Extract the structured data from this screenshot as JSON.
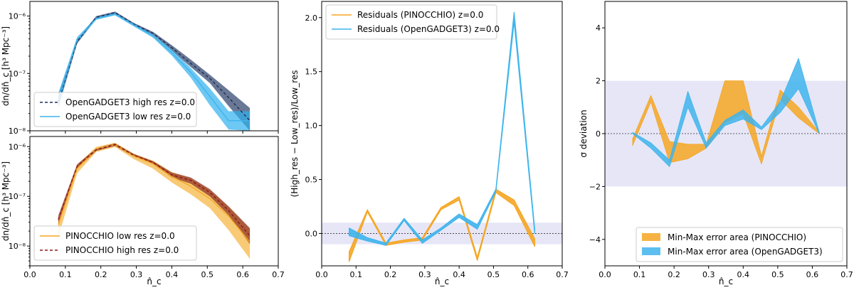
{
  "chart_data": [
    {
      "type": "line",
      "panel": "top-left",
      "ylabel": "dn/dn̂_c [h³ Mpc⁻³]",
      "xlabel": "",
      "yscale": "log",
      "xlim": [
        0.0,
        0.7
      ],
      "ylim": [
        1e-08,
        1.8e-06
      ],
      "yticks": [
        {
          "v": 1e-08,
          "label": "10⁻⁸"
        },
        {
          "v": 1e-07,
          "label": "10⁻⁷"
        },
        {
          "v": 1e-06,
          "label": "10⁻⁶"
        }
      ],
      "legend_position": "lower-left",
      "x": [
        0.08,
        0.133,
        0.187,
        0.24,
        0.293,
        0.347,
        0.4,
        0.453,
        0.507,
        0.56,
        0.62
      ],
      "series": [
        {
          "name": "OpenGADGET3 high res z=0.0",
          "style": "dashed",
          "color": "#1f2d5c",
          "band_color": "#2a3f66",
          "values": [
            3.2e-08,
            3.6e-07,
            9.5e-07,
            1.15e-06,
            7.2e-07,
            5e-07,
            2.8e-07,
            1.5e-07,
            8.2e-08,
            3.8e-08,
            1.5e-08
          ],
          "band_low": [
            2.5e-08,
            3.3e-07,
            9e-07,
            1.1e-06,
            6.8e-07,
            4.7e-07,
            2.5e-07,
            1.3e-07,
            6.8e-08,
            2.7e-08,
            1e-08
          ],
          "band_high": [
            4.2e-08,
            3.9e-07,
            1e-06,
            1.2e-06,
            7.6e-07,
            5.3e-07,
            3.1e-07,
            1.75e-07,
            9.5e-08,
            5.1e-08,
            2.5e-08
          ]
        },
        {
          "name": "OpenGADGET3 low res z=0.0",
          "style": "solid",
          "color": "#3fb4ec",
          "band_color": "#2fb0f0",
          "values": [
            3.5e-08,
            3.9e-07,
            9e-07,
            1.08e-06,
            7e-07,
            4.5e-07,
            2.3e-07,
            1.05e-07,
            4e-08,
            1.5e-08,
            1.5e-08
          ],
          "band_low": [
            2.6e-08,
            3.5e-07,
            8.6e-07,
            1.03e-06,
            6.6e-07,
            4.2e-07,
            2.05e-07,
            8.5e-08,
            2.8e-08,
            1.05e-08,
            1e-08
          ],
          "band_high": [
            4.5e-08,
            4.3e-07,
            9.5e-07,
            1.13e-06,
            7.4e-07,
            4.8e-07,
            2.6e-07,
            1.25e-07,
            5.5e-08,
            2.2e-08,
            2.2e-08
          ]
        }
      ]
    },
    {
      "type": "line",
      "panel": "bottom-left",
      "ylabel": "dn/dn̂_c [h³ Mpc⁻³]",
      "xlabel": "n̂_c",
      "yscale": "log",
      "xlim": [
        0.0,
        0.7
      ],
      "ylim": [
        4e-09,
        1.6e-06
      ],
      "yticks": [
        {
          "v": 1e-08,
          "label": "10⁻⁸"
        },
        {
          "v": 1e-07,
          "label": "10⁻⁷"
        },
        {
          "v": 1e-06,
          "label": "10⁻⁶"
        }
      ],
      "xticks": [
        "0.0",
        "0.1",
        "0.2",
        "0.3",
        "0.4",
        "0.5",
        "0.6",
        "0.7"
      ],
      "legend_position": "lower-left",
      "x": [
        0.08,
        0.133,
        0.187,
        0.24,
        0.293,
        0.347,
        0.4,
        0.453,
        0.507,
        0.56,
        0.62
      ],
      "series": [
        {
          "name": "PINOCCHIO low res z=0.0",
          "style": "solid",
          "color": "#f5a623",
          "band_color": "#f5b33b",
          "values": [
            2.7e-08,
            3.6e-07,
            9e-07,
            1.1e-06,
            6.5e-07,
            4.5e-07,
            2.5e-07,
            1.6e-07,
            9e-08,
            4e-08,
            1.2e-08
          ],
          "band_low": [
            1.5e-08,
            2.9e-07,
            7.8e-07,
            9.8e-07,
            5.6e-07,
            3.6e-07,
            1.9e-07,
            1.1e-07,
            5.8e-08,
            2.1e-08,
            5.5e-09
          ],
          "band_high": [
            3.6e-08,
            4.3e-07,
            9.9e-07,
            1.2e-06,
            7.2e-07,
            5.2e-07,
            3.1e-07,
            2.3e-07,
            1.35e-07,
            6.2e-08,
            2.2e-08
          ]
        },
        {
          "name": "PINOCCHIO high res z=0.0",
          "style": "dashed",
          "color": "#8b1a1a",
          "band_color": "#8b2c1f",
          "values": [
            3.4e-08,
            4e-07,
            8.7e-07,
            1.1e-06,
            6.7e-07,
            4.8e-07,
            2.7e-07,
            2.1e-07,
            1.2e-07,
            5.2e-08,
            1.6e-08
          ],
          "band_low": [
            2.8e-08,
            3.6e-07,
            8.2e-07,
            1.04e-06,
            6.3e-07,
            4.5e-07,
            2.4e-07,
            1.8e-07,
            1e-07,
            4.2e-08,
            1.1e-08
          ],
          "band_high": [
            4.1e-08,
            4.4e-07,
            9.2e-07,
            1.16e-06,
            7.1e-07,
            5.1e-07,
            3e-07,
            2.4e-07,
            1.4e-07,
            6.3e-08,
            2.3e-08
          ]
        }
      ]
    },
    {
      "type": "line",
      "panel": "middle",
      "ylabel": "(High_res − Low_res)/Low_res",
      "xlabel": "n̂_c",
      "xlim": [
        0.0,
        0.7
      ],
      "ylim": [
        -0.3,
        2.15
      ],
      "yticks": [
        "0.0",
        "0.5",
        "1.0",
        "1.5",
        "2.0"
      ],
      "xticks": [
        "0.0",
        "0.1",
        "0.2",
        "0.3",
        "0.4",
        "0.5",
        "0.6",
        "0.7"
      ],
      "legend_position": "upper-left",
      "shaded_band": [
        -0.1,
        0.1
      ],
      "reference_line": 0.0,
      "x": [
        0.08,
        0.133,
        0.187,
        0.24,
        0.293,
        0.347,
        0.4,
        0.453,
        0.507,
        0.56,
        0.62
      ],
      "series": [
        {
          "name": "Residuals (PINOCCHIO) z=0.0",
          "color": "#f5a623",
          "band_low": [
            -0.26,
            0.2,
            -0.11,
            -0.08,
            -0.06,
            0.22,
            0.31,
            -0.25,
            0.38,
            0.26,
            -0.12
          ],
          "band_high": [
            -0.17,
            0.22,
            -0.09,
            -0.06,
            -0.04,
            0.24,
            0.34,
            -0.22,
            0.41,
            0.31,
            -0.05
          ]
        },
        {
          "name": "Residuals (OpenGADGET3) z=0.0",
          "color": "#3fb4ec",
          "band_low": [
            -0.02,
            -0.07,
            -0.11,
            0.12,
            -0.09,
            0.03,
            0.15,
            0.04,
            0.39,
            1.96,
            0.0
          ],
          "band_high": [
            0.05,
            -0.04,
            -0.09,
            0.14,
            -0.06,
            0.05,
            0.18,
            0.08,
            0.41,
            2.05,
            0.04
          ]
        }
      ]
    },
    {
      "type": "area",
      "panel": "right",
      "ylabel": "σ deviation",
      "xlabel": "n̂_c",
      "xlim": [
        0.0,
        0.7
      ],
      "ylim": [
        -5,
        5
      ],
      "yticks": [
        "−4",
        "−2",
        "0",
        "2",
        "4"
      ],
      "xticks": [
        "0.0",
        "0.1",
        "0.2",
        "0.3",
        "0.4",
        "0.5",
        "0.6",
        "0.7"
      ],
      "legend_position": "lower-right",
      "shaded_band": [
        -2,
        2
      ],
      "reference_line": 0.0,
      "x": [
        0.08,
        0.133,
        0.187,
        0.24,
        0.293,
        0.347,
        0.4,
        0.453,
        0.507,
        0.56,
        0.62
      ],
      "series": [
        {
          "name": "Min-Max error area (PINOCCHIO)",
          "color": "#f5a623",
          "band_low": [
            -0.45,
            1.2,
            -1.1,
            -0.95,
            -0.55,
            0.4,
            0.75,
            -1.15,
            1.3,
            0.6,
            0.0
          ],
          "band_high": [
            -0.2,
            1.45,
            -0.3,
            -0.4,
            -0.4,
            2.0,
            2.0,
            -0.85,
            1.65,
            1.0,
            0.05
          ]
        },
        {
          "name": "Min-Max error area (OpenGADGET3)",
          "color": "#3fb4ec",
          "band_low": [
            0.0,
            -0.55,
            -1.25,
            1.0,
            -0.55,
            0.3,
            0.55,
            0.15,
            0.8,
            1.7,
            0.0
          ],
          "band_high": [
            0.05,
            -0.35,
            -1.0,
            1.6,
            -0.35,
            0.5,
            0.9,
            0.25,
            1.2,
            2.85,
            0.05
          ]
        }
      ]
    }
  ]
}
